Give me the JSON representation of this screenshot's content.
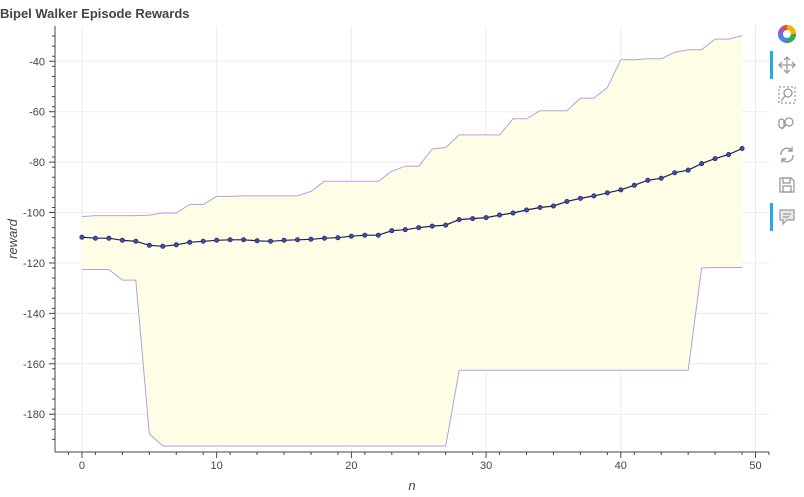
{
  "chart_data": {
    "type": "line",
    "title": "Bipel Walker Episode Rewards",
    "xlabel": "n",
    "ylabel": "reward",
    "xlim": [
      -2,
      51
    ],
    "ylim": [
      -195,
      -26
    ],
    "xticks": [
      0,
      10,
      20,
      30,
      40,
      50
    ],
    "yticks": [
      -180,
      -160,
      -140,
      -120,
      -100,
      -80,
      -60,
      -40
    ],
    "grid": true,
    "x": [
      0,
      1,
      2,
      3,
      4,
      5,
      6,
      7,
      8,
      9,
      10,
      11,
      12,
      13,
      14,
      15,
      16,
      17,
      18,
      19,
      20,
      21,
      22,
      23,
      24,
      25,
      26,
      27,
      28,
      29,
      30,
      31,
      32,
      33,
      34,
      35,
      36,
      37,
      38,
      39,
      40,
      41,
      42,
      43,
      44,
      45,
      46,
      47,
      48,
      49
    ],
    "mean": [
      -109.8,
      -110.2,
      -110.2,
      -111.0,
      -111.4,
      -113.0,
      -113.4,
      -112.8,
      -111.8,
      -111.4,
      -111.0,
      -110.8,
      -110.8,
      -111.2,
      -111.4,
      -111.0,
      -110.8,
      -110.6,
      -110.2,
      -110.0,
      -109.4,
      -109.0,
      -109.0,
      -107.2,
      -106.8,
      -106.0,
      -105.4,
      -105.0,
      -102.8,
      -102.4,
      -102.0,
      -101.0,
      -100.2,
      -99.0,
      -98.0,
      -97.4,
      -95.6,
      -94.4,
      -93.4,
      -92.2,
      -91.0,
      -89.2,
      -87.2,
      -86.4,
      -84.2,
      -83.2,
      -80.6,
      -78.6,
      -77.0,
      -74.6
    ],
    "upper": [
      -101.6,
      -101.2,
      -101.2,
      -101.2,
      -101.2,
      -101.0,
      -100.2,
      -100.2,
      -96.8,
      -96.8,
      -93.6,
      -93.6,
      -93.4,
      -93.4,
      -93.4,
      -93.4,
      -93.4,
      -91.6,
      -87.6,
      -87.6,
      -87.6,
      -87.6,
      -87.6,
      -83.6,
      -81.6,
      -81.6,
      -74.8,
      -74.2,
      -69.2,
      -69.2,
      -69.2,
      -69.2,
      -62.8,
      -62.8,
      -59.6,
      -59.6,
      -59.6,
      -54.6,
      -54.6,
      -50.4,
      -39.4,
      -39.4,
      -39.0,
      -39.0,
      -36.4,
      -35.4,
      -35.4,
      -31.2,
      -31.2,
      -29.8
    ],
    "lower": [
      -122.6,
      -122.6,
      -122.6,
      -126.8,
      -126.8,
      -187.8,
      -192.6,
      -192.6,
      -192.6,
      -192.6,
      -192.6,
      -192.6,
      -192.6,
      -192.6,
      -192.6,
      -192.6,
      -192.6,
      -192.6,
      -192.6,
      -192.6,
      -192.6,
      -192.6,
      -192.6,
      -192.6,
      -192.6,
      -192.6,
      -192.6,
      -192.6,
      -162.6,
      -162.6,
      -162.6,
      -162.6,
      -162.6,
      -162.6,
      -162.6,
      -162.6,
      -162.6,
      -162.6,
      -162.6,
      -162.6,
      -162.6,
      -162.6,
      -162.6,
      -162.6,
      -162.6,
      -162.6,
      -122.0,
      -121.8,
      -121.8,
      -121.8
    ],
    "colors": {
      "band_fill": "#fffde6",
      "band_line": "#a5a8e0",
      "mean_line": "#1f1f4d",
      "marker": "#3a4db5",
      "grid": "#ececec",
      "axis": "#444444"
    }
  },
  "toolbar": {
    "tools": [
      {
        "name": "bokeh-logo-icon",
        "active": false
      },
      {
        "name": "pan-icon",
        "active": true
      },
      {
        "name": "box-zoom-icon",
        "active": false
      },
      {
        "name": "wheel-zoom-icon",
        "active": false
      },
      {
        "name": "reset-icon",
        "active": false
      },
      {
        "name": "save-icon",
        "active": false
      },
      {
        "name": "hover-icon",
        "active": true
      }
    ]
  }
}
